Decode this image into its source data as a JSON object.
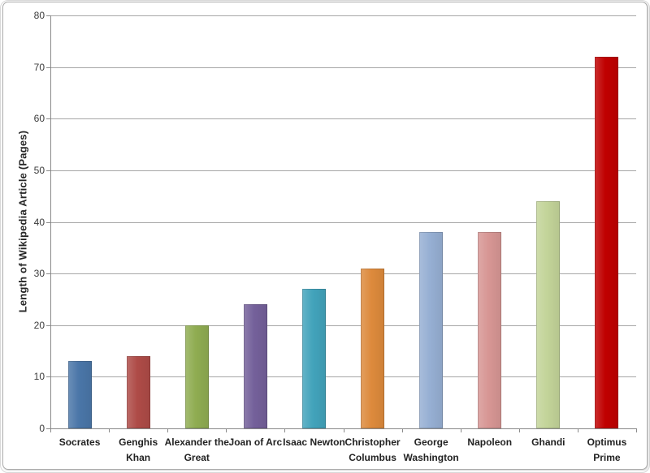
{
  "chart_data": {
    "type": "bar",
    "title": "",
    "xlabel": "",
    "ylabel": "Length of Wikipedia Article (Pages)",
    "ylim": [
      0,
      80
    ],
    "yticks": [
      0,
      10,
      20,
      30,
      40,
      50,
      60,
      70,
      80
    ],
    "grid": true,
    "legend": false,
    "categories": [
      "Socrates",
      "Genghis Khan",
      "Alexander the Great",
      "Joan of Arc",
      "Isaac Newton",
      "Christopher Columbus",
      "George Washington",
      "Napoleon",
      "Ghandi",
      "Optimus Prime"
    ],
    "category_label_lines": [
      [
        "Socrates"
      ],
      [
        "Genghis",
        "Khan"
      ],
      [
        "Alexander the",
        "Great"
      ],
      [
        "Joan of Arc"
      ],
      [
        "Isaac Newton"
      ],
      [
        "Christopher",
        "Columbus"
      ],
      [
        "George",
        "Washington"
      ],
      [
        "Napoleon"
      ],
      [
        "Ghandi"
      ],
      [
        "Optimus",
        "Prime"
      ]
    ],
    "values": [
      13,
      14,
      20,
      24,
      27,
      31,
      38,
      38,
      44,
      72
    ],
    "bar_colors": [
      "#4A76A8",
      "#AE4B47",
      "#8FAC51",
      "#74609A",
      "#42A3BB",
      "#DD8A3C",
      "#96AFD3",
      "#D79694",
      "#C3D499",
      "#C00000"
    ]
  },
  "colors": {
    "gridline": "#A6A6A6",
    "axis": "#8A8A8A",
    "tick_label": "#3A3A3A",
    "category_label": "#222222",
    "frame_border": "#ABABAB"
  }
}
